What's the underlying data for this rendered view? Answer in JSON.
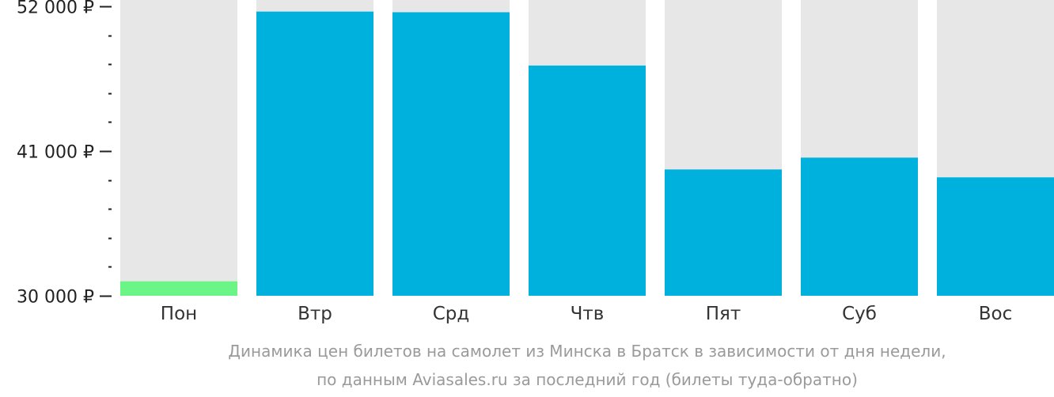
{
  "chart_data": {
    "type": "bar",
    "categories": [
      "Пон",
      "Втр",
      "Срд",
      "Чтв",
      "Пят",
      "Суб",
      "Вос"
    ],
    "values": [
      31100,
      51600,
      51550,
      47500,
      39600,
      40500,
      39000
    ],
    "ylim": [
      30000,
      52000
    ],
    "y_ticks": [
      {
        "value": 52000,
        "label": "52 000 ₽"
      },
      {
        "value": 41000,
        "label": "41 000 ₽"
      },
      {
        "value": 30000,
        "label": "30 000 ₽"
      }
    ],
    "minor_tick_step": 2200,
    "highlight_index": 0,
    "colors": {
      "bar": "#00b0dd",
      "highlight": "#6cf587",
      "track": "#e7e7e7",
      "tick_text": "#222222",
      "category_text": "#333333"
    },
    "grid": false,
    "legend": "none"
  },
  "caption": {
    "line1": "Динамика цен билетов на самолет из Минска в Братск в зависимости от дня недели,",
    "line2": "по данным Aviasales.ru за последний год (билеты туда-обратно)"
  }
}
